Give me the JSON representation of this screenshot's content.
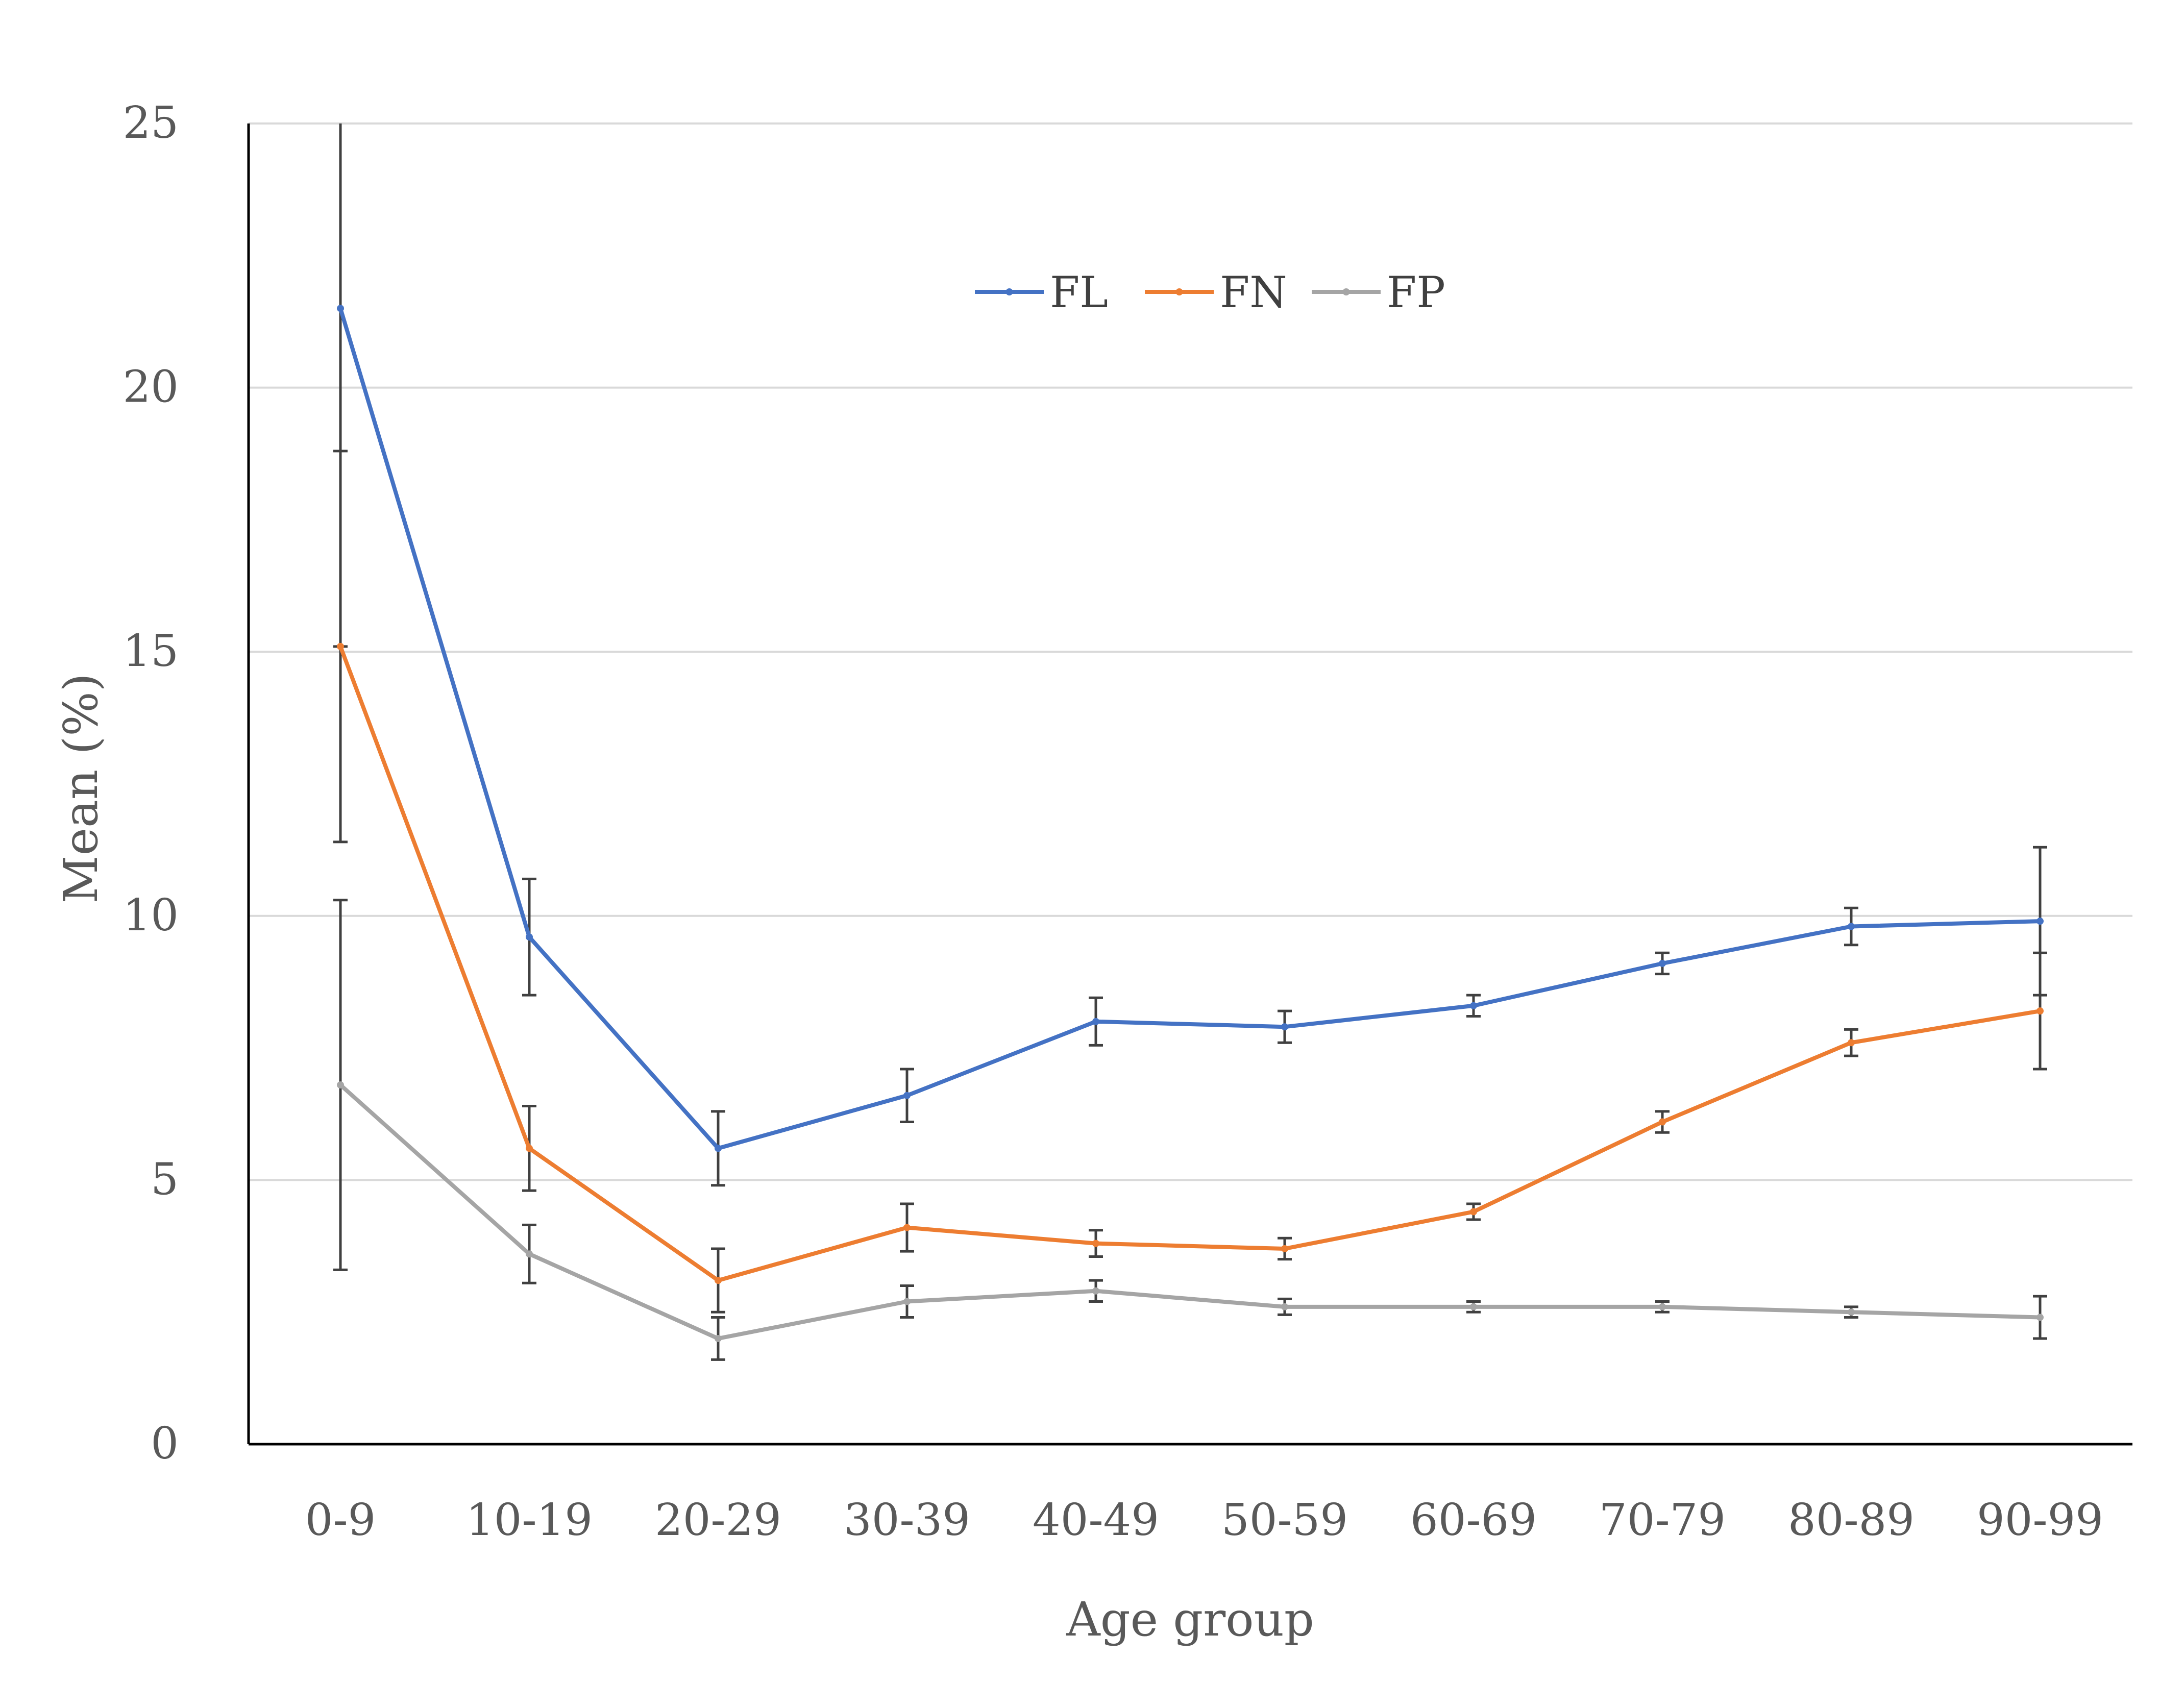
{
  "chart_data": {
    "type": "line",
    "xlabel": "Age group",
    "ylabel": "Mean (%)",
    "ylim": [
      0,
      25
    ],
    "yticks": [
      0,
      5,
      10,
      15,
      20,
      25
    ],
    "grid": true,
    "legend_position": "top-center",
    "categories": [
      "0-9",
      "10-19",
      "20-29",
      "30-39",
      "40-49",
      "50-59",
      "60-69",
      "70-79",
      "80-89",
      "90-99"
    ],
    "series": [
      {
        "name": "FL",
        "color": "#4472c4",
        "values": [
          21.5,
          9.6,
          5.6,
          6.6,
          8.0,
          7.9,
          8.3,
          9.1,
          9.8,
          9.9
        ],
        "error": [
          6.4,
          1.1,
          0.7,
          0.5,
          0.45,
          0.3,
          0.2,
          0.2,
          0.35,
          1.4
        ]
      },
      {
        "name": "FN",
        "color": "#ed7d31",
        "values": [
          15.1,
          5.6,
          3.1,
          4.1,
          3.8,
          3.7,
          4.4,
          6.1,
          7.6,
          8.2
        ],
        "error": [
          3.7,
          0.8,
          0.6,
          0.45,
          0.25,
          0.2,
          0.15,
          0.2,
          0.25,
          1.1
        ]
      },
      {
        "name": "FP",
        "color": "#a5a5a5",
        "values": [
          6.8,
          3.6,
          2.0,
          2.7,
          2.9,
          2.6,
          2.6,
          2.6,
          2.5,
          2.4
        ],
        "error": [
          3.5,
          0.55,
          0.4,
          0.3,
          0.2,
          0.15,
          0.1,
          0.1,
          0.1,
          0.4
        ]
      }
    ]
  }
}
